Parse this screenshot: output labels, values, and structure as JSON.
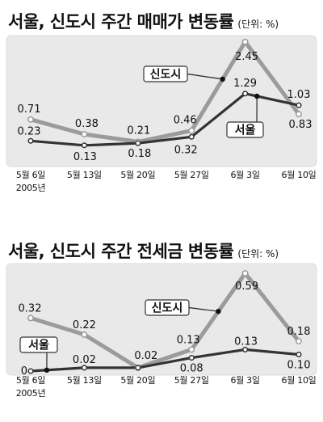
{
  "chart_data": [
    {
      "type": "line",
      "title": "서울, 신도시 주간 매매가 변동률",
      "unit_note": "(단위: %)",
      "categories": [
        "5월 6일",
        "5월 13일",
        "5월 20일",
        "5월 27일",
        "6월 3일",
        "6월 10일"
      ],
      "first_category_note": "2005년",
      "ylim": [
        0,
        2.6
      ],
      "grid": false,
      "series": [
        {
          "name": "신도시",
          "color": "#9b9b9b",
          "values": [
            0.71,
            0.38,
            0.21,
            0.46,
            2.45,
            0.83
          ],
          "labels": [
            "0.71",
            "0.38",
            "0.21",
            "0.46",
            "2.45",
            "0.83"
          ]
        },
        {
          "name": "서울",
          "color": "#333333",
          "values": [
            0.23,
            0.13,
            0.18,
            0.32,
            1.29,
            1.03
          ],
          "labels": [
            "0.23",
            "0.13",
            "0.18",
            "0.32",
            "1.29",
            "1.03"
          ]
        }
      ]
    },
    {
      "type": "line",
      "title": "서울, 신도시 주간 전세금 변동률",
      "unit_note": "(단위: %)",
      "categories": [
        "5월 6일",
        "5월 13일",
        "5월 20일",
        "5월 27일",
        "6월 3일",
        "6월 10일"
      ],
      "first_category_note": "2005년",
      "ylim": [
        0,
        0.65
      ],
      "grid": false,
      "series": [
        {
          "name": "신도시",
          "color": "#9b9b9b",
          "values": [
            0.32,
            0.22,
            0.02,
            0.13,
            0.59,
            0.18
          ],
          "labels": [
            "0.32",
            "0.22",
            "0.02",
            "0.13",
            "0.59",
            "0.18"
          ]
        },
        {
          "name": "서울",
          "color": "#333333",
          "values": [
            0,
            0.02,
            0.02,
            0.08,
            0.13,
            0.1
          ],
          "labels": [
            "0",
            "0.02",
            null,
            "0.08",
            "0.13",
            "0.10"
          ]
        }
      ]
    }
  ]
}
